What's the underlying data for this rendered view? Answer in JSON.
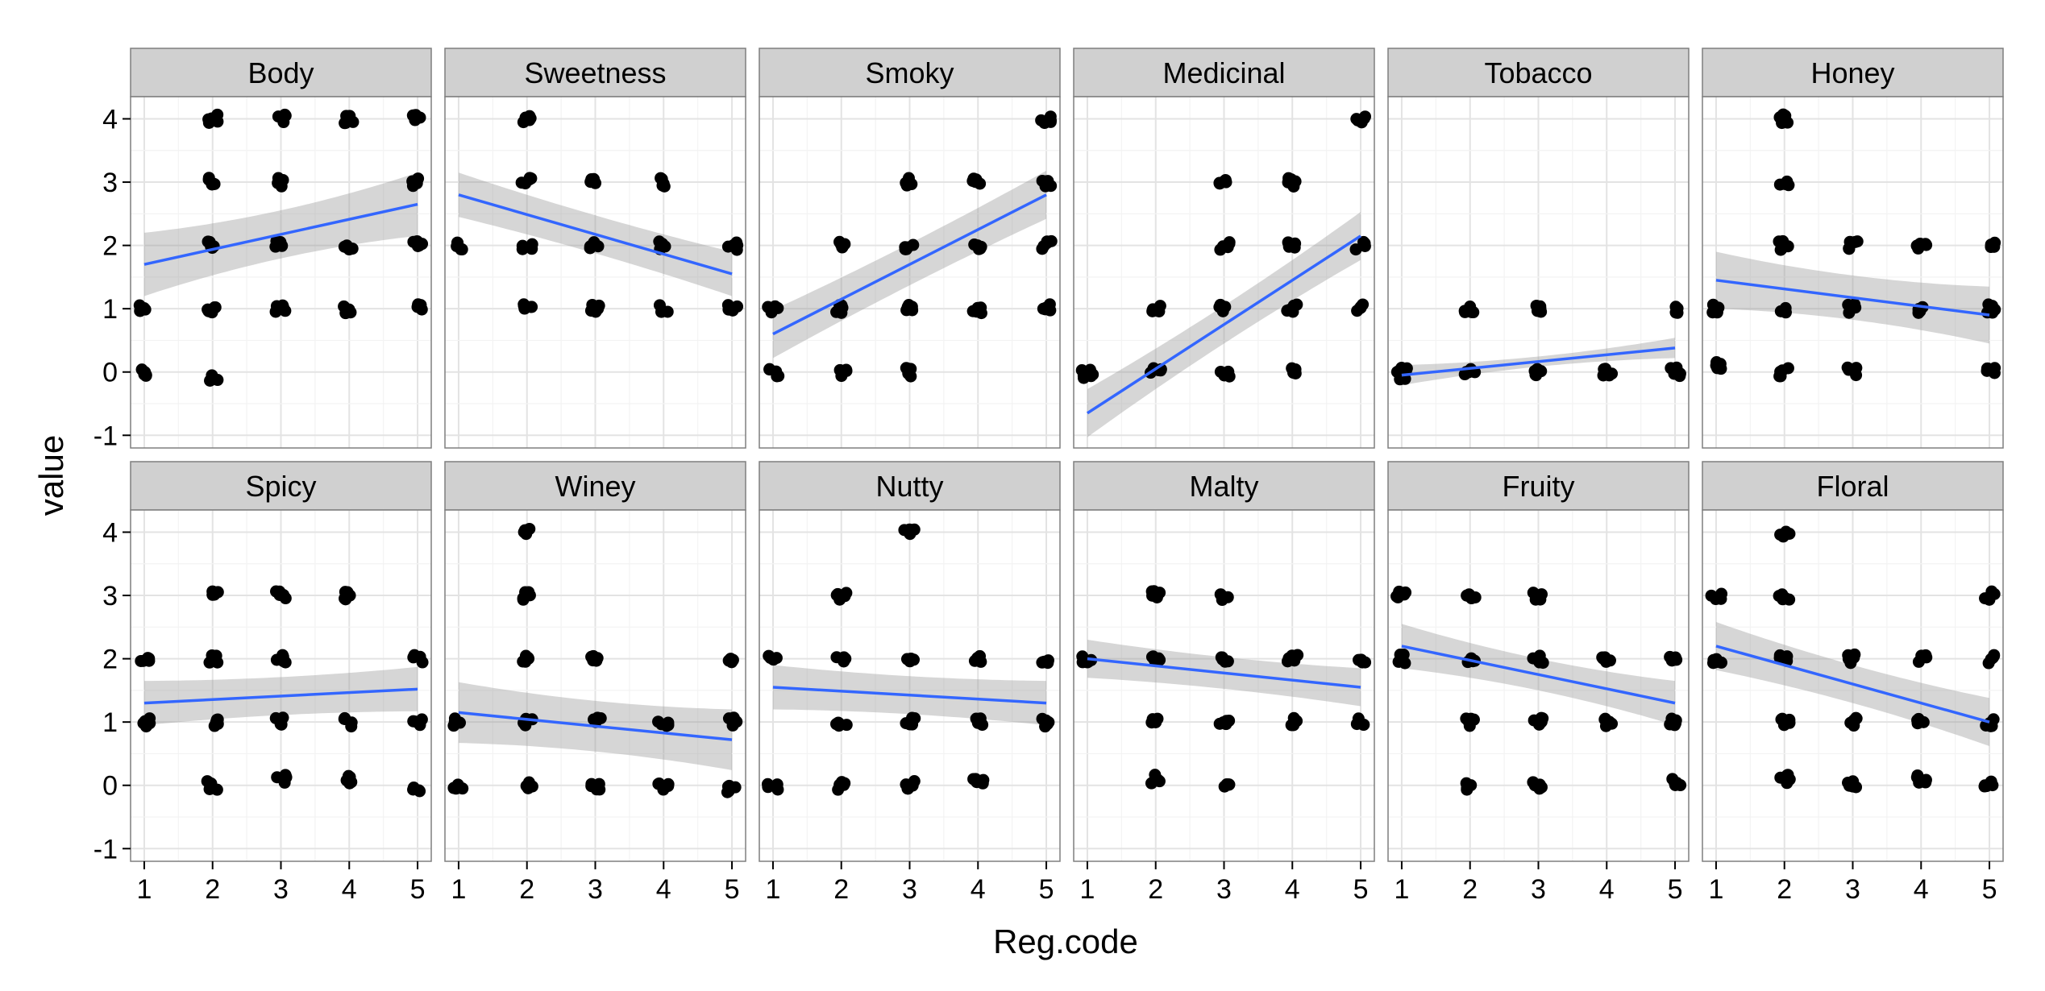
{
  "chart_data": {
    "type": "scatter",
    "title": "",
    "xlabel": "Reg.code",
    "ylabel": "value",
    "xlim": [
      0.8,
      5.2
    ],
    "ylim": [
      -1.2,
      4.35
    ],
    "x_ticks": [
      "1",
      "2",
      "3",
      "4",
      "5"
    ],
    "y_ticks": [
      "-1",
      "0",
      "1",
      "2",
      "3",
      "4"
    ],
    "grid": true,
    "legend": "none",
    "colors": {
      "point": "#000000",
      "fit_line": "#3366ff",
      "confidence_band": "#999999",
      "panel_background": "#ffffff",
      "strip_background": "#d0d0d0",
      "grid": "#ebebeb"
    },
    "panels": [
      {
        "name": "Body",
        "fit": [
          1.7,
          2.65
        ],
        "band": [
          0.38,
          0.5
        ],
        "points": [
          [
            1,
            1
          ],
          [
            1,
            0
          ],
          [
            2,
            4
          ],
          [
            2,
            3
          ],
          [
            2,
            2
          ],
          [
            2,
            1
          ],
          [
            2,
            -0.1
          ],
          [
            3,
            4
          ],
          [
            3,
            3
          ],
          [
            3,
            2
          ],
          [
            3,
            1
          ],
          [
            4,
            4
          ],
          [
            4,
            2
          ],
          [
            4,
            1
          ],
          [
            5,
            4
          ],
          [
            5,
            3
          ],
          [
            5,
            2
          ],
          [
            5,
            1
          ]
        ]
      },
      {
        "name": "Sweetness",
        "fit": [
          2.8,
          1.55
        ],
        "band": [
          0.3,
          0.35
        ],
        "points": [
          [
            1,
            2
          ],
          [
            2,
            4
          ],
          [
            2,
            3
          ],
          [
            2,
            2
          ],
          [
            2,
            1
          ],
          [
            3,
            3
          ],
          [
            3,
            2
          ],
          [
            3,
            1
          ],
          [
            4,
            3
          ],
          [
            4,
            2
          ],
          [
            4,
            1
          ],
          [
            5,
            2
          ],
          [
            5,
            1
          ]
        ]
      },
      {
        "name": "Smoky",
        "fit": [
          0.6,
          2.8
        ],
        "band": [
          0.33,
          0.38
        ],
        "points": [
          [
            1,
            1
          ],
          [
            1,
            0
          ],
          [
            2,
            2
          ],
          [
            2,
            1
          ],
          [
            2,
            0
          ],
          [
            3,
            3
          ],
          [
            3,
            2
          ],
          [
            3,
            1
          ],
          [
            3,
            0
          ],
          [
            4,
            3
          ],
          [
            4,
            2
          ],
          [
            4,
            1
          ],
          [
            5,
            4
          ],
          [
            5,
            3
          ],
          [
            5,
            2
          ],
          [
            5,
            1
          ]
        ]
      },
      {
        "name": "Medicinal",
        "fit": [
          -0.65,
          2.15
        ],
        "band": [
          0.3,
          0.38
        ],
        "points": [
          [
            1,
            0
          ],
          [
            1,
            -0.1
          ],
          [
            2,
            1
          ],
          [
            2,
            0
          ],
          [
            3,
            3
          ],
          [
            3,
            2
          ],
          [
            3,
            1
          ],
          [
            3,
            0
          ],
          [
            4,
            3
          ],
          [
            4,
            2
          ],
          [
            4,
            1
          ],
          [
            4,
            0
          ],
          [
            5,
            4
          ],
          [
            5,
            2
          ],
          [
            5,
            1
          ]
        ]
      },
      {
        "name": "Tobacco",
        "fit": [
          -0.05,
          0.38
        ],
        "band": [
          0.08,
          0.16
        ],
        "points": [
          [
            1,
            0
          ],
          [
            1,
            -0.05
          ],
          [
            2,
            1
          ],
          [
            2,
            0
          ],
          [
            3,
            1
          ],
          [
            3,
            0
          ],
          [
            4,
            0
          ],
          [
            5,
            1
          ],
          [
            5,
            0
          ]
        ]
      },
      {
        "name": "Honey",
        "fit": [
          1.45,
          0.9
        ],
        "band": [
          0.35,
          0.45
        ],
        "points": [
          [
            1,
            1
          ],
          [
            1,
            0.1
          ],
          [
            2,
            4
          ],
          [
            2,
            3
          ],
          [
            2,
            2
          ],
          [
            2,
            1
          ],
          [
            2,
            0
          ],
          [
            3,
            2
          ],
          [
            3,
            1
          ],
          [
            3,
            0
          ],
          [
            4,
            2
          ],
          [
            4,
            1
          ],
          [
            5,
            2
          ],
          [
            5,
            1
          ],
          [
            5,
            0
          ]
        ]
      },
      {
        "name": "Spicy",
        "fit": [
          1.3,
          1.52
        ],
        "band": [
          0.3,
          0.35
        ],
        "points": [
          [
            1,
            2
          ],
          [
            1,
            1
          ],
          [
            2,
            3
          ],
          [
            2,
            2
          ],
          [
            2,
            1
          ],
          [
            2,
            0
          ],
          [
            3,
            3
          ],
          [
            3,
            2
          ],
          [
            3,
            1
          ],
          [
            3,
            0.1
          ],
          [
            4,
            3
          ],
          [
            4,
            1
          ],
          [
            4,
            0.1
          ],
          [
            5,
            2
          ],
          [
            5,
            1
          ],
          [
            5,
            -0.05
          ]
        ]
      },
      {
        "name": "Winey",
        "fit": [
          1.15,
          0.72
        ],
        "band": [
          0.4,
          0.48
        ],
        "points": [
          [
            1,
            1
          ],
          [
            1,
            -0.05
          ],
          [
            2,
            4
          ],
          [
            2,
            3
          ],
          [
            2,
            2
          ],
          [
            2,
            1
          ],
          [
            2,
            0
          ],
          [
            3,
            2
          ],
          [
            3,
            1
          ],
          [
            3,
            0
          ],
          [
            4,
            1
          ],
          [
            4,
            0
          ],
          [
            5,
            2
          ],
          [
            5,
            1
          ],
          [
            5,
            -0.05
          ]
        ]
      },
      {
        "name": "Nutty",
        "fit": [
          1.55,
          1.3
        ],
        "band": [
          0.3,
          0.35
        ],
        "points": [
          [
            1,
            2
          ],
          [
            1,
            -0.05
          ],
          [
            2,
            3
          ],
          [
            2,
            2
          ],
          [
            2,
            1
          ],
          [
            2,
            0
          ],
          [
            3,
            4
          ],
          [
            3,
            2
          ],
          [
            3,
            1
          ],
          [
            3,
            0
          ],
          [
            4,
            2
          ],
          [
            4,
            1
          ],
          [
            4,
            0.05
          ],
          [
            5,
            2
          ],
          [
            5,
            1
          ]
        ]
      },
      {
        "name": "Malty",
        "fit": [
          2.0,
          1.55
        ],
        "band": [
          0.25,
          0.3
        ],
        "points": [
          [
            1,
            2
          ],
          [
            2,
            3
          ],
          [
            2,
            2
          ],
          [
            2,
            1
          ],
          [
            2,
            0.1
          ],
          [
            3,
            3
          ],
          [
            3,
            2
          ],
          [
            3,
            1
          ],
          [
            3,
            -0.05
          ],
          [
            4,
            2
          ],
          [
            4,
            1
          ],
          [
            5,
            2
          ],
          [
            5,
            1
          ]
        ]
      },
      {
        "name": "Fruity",
        "fit": [
          2.2,
          1.3
        ],
        "band": [
          0.25,
          0.35
        ],
        "points": [
          [
            1,
            3
          ],
          [
            1,
            2
          ],
          [
            2,
            3
          ],
          [
            2,
            2
          ],
          [
            2,
            1
          ],
          [
            2,
            0
          ],
          [
            3,
            3
          ],
          [
            3,
            2
          ],
          [
            3,
            1
          ],
          [
            3,
            0
          ],
          [
            4,
            2
          ],
          [
            4,
            1
          ],
          [
            5,
            2
          ],
          [
            5,
            1
          ],
          [
            5,
            0.05
          ]
        ]
      },
      {
        "name": "Floral",
        "fit": [
          2.2,
          1.0
        ],
        "band": [
          0.3,
          0.38
        ],
        "points": [
          [
            1,
            3
          ],
          [
            1,
            2
          ],
          [
            2,
            4
          ],
          [
            2,
            3
          ],
          [
            2,
            2
          ],
          [
            2,
            1
          ],
          [
            2,
            0.1
          ],
          [
            3,
            2
          ],
          [
            3,
            1
          ],
          [
            3,
            0
          ],
          [
            4,
            2
          ],
          [
            4,
            1
          ],
          [
            4,
            0.1
          ],
          [
            5,
            3
          ],
          [
            5,
            2
          ],
          [
            5,
            1
          ],
          [
            5,
            0.05
          ]
        ]
      }
    ]
  }
}
